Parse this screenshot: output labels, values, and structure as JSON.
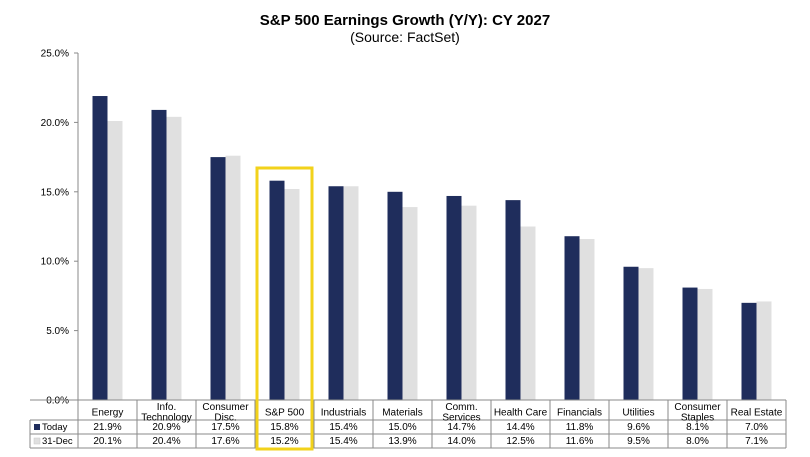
{
  "chart_data": {
    "type": "bar",
    "title": "S&P 500 Earnings Growth (Y/Y): CY 2027",
    "subtitle": "(Source: FactSet)",
    "categories": [
      [
        "Energy"
      ],
      [
        "Info.",
        "Technology"
      ],
      [
        "Consumer",
        "Disc."
      ],
      [
        "S&P 500"
      ],
      [
        "Industrials"
      ],
      [
        "Materials"
      ],
      [
        "Comm.",
        "Services"
      ],
      [
        "Health Care"
      ],
      [
        "Financials"
      ],
      [
        "Utilities"
      ],
      [
        "Consumer",
        "Staples"
      ],
      [
        "Real Estate"
      ]
    ],
    "series": [
      {
        "name": "Today",
        "color": "#1f2d5c",
        "values": [
          21.9,
          20.9,
          17.5,
          15.8,
          15.4,
          15.0,
          14.7,
          14.4,
          11.8,
          9.6,
          8.1,
          7.0
        ],
        "labels": [
          "21.9%",
          "20.9%",
          "17.5%",
          "15.8%",
          "15.4%",
          "15.0%",
          "14.7%",
          "14.4%",
          "11.8%",
          "9.6%",
          "8.1%",
          "7.0%"
        ]
      },
      {
        "name": "31-Dec",
        "color": "#e0e0e0",
        "values": [
          20.1,
          20.4,
          17.6,
          15.2,
          15.4,
          13.9,
          14.0,
          12.5,
          11.6,
          9.5,
          8.0,
          7.1
        ],
        "labels": [
          "20.1%",
          "20.4%",
          "17.6%",
          "15.2%",
          "15.4%",
          "13.9%",
          "14.0%",
          "12.5%",
          "11.6%",
          "9.5%",
          "8.0%",
          "7.1%"
        ]
      }
    ],
    "ylim": [
      0,
      25
    ],
    "yticks": [
      "0.0%",
      "5.0%",
      "10.0%",
      "15.0%",
      "20.0%",
      "25.0%"
    ],
    "highlight_index": 3,
    "highlight_color": "#f2d21b"
  }
}
